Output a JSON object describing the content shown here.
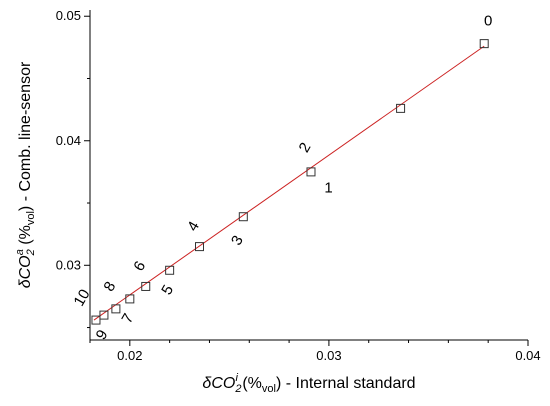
{
  "chart_data": {
    "type": "scatter",
    "x_axis": {
      "title_parts": [
        "δCO",
        "2",
        "i",
        " (%",
        "vol",
        ") - Internal standard"
      ],
      "range": [
        0.018,
        0.04
      ],
      "ticks": [
        0.02,
        0.03,
        0.04
      ],
      "tick_labels": [
        "0.02",
        "0.03",
        "0.04"
      ],
      "minor_ticks": [
        0.018,
        0.022,
        0.024,
        0.026,
        0.028,
        0.032,
        0.034,
        0.036,
        0.038
      ]
    },
    "y_axis": {
      "title_parts": [
        "δCO",
        "2",
        "a",
        " (%",
        "vol",
        ") - Comb. line-sensor"
      ],
      "range": [
        0.024,
        0.0505
      ],
      "ticks": [
        0.03,
        0.04,
        0.05
      ],
      "tick_labels": [
        "0.03",
        "0.04",
        "0.05"
      ],
      "minor_ticks": [
        0.025,
        0.035,
        0.045
      ]
    },
    "series": [
      {
        "marker": "open-square",
        "points": [
          {
            "label": "0",
            "x": 0.0378,
            "y": 0.0478
          },
          {
            "label": "1",
            "x": 0.0336,
            "y": 0.0426
          },
          {
            "label": "2",
            "x": 0.0291,
            "y": 0.0375
          },
          {
            "label": "3",
            "x": 0.0257,
            "y": 0.0339
          },
          {
            "label": "4",
            "x": 0.0235,
            "y": 0.0315
          },
          {
            "label": "5",
            "x": 0.022,
            "y": 0.0296
          },
          {
            "label": "6",
            "x": 0.0208,
            "y": 0.0283
          },
          {
            "label": "7",
            "x": 0.02,
            "y": 0.0273
          },
          {
            "label": "8",
            "x": 0.0193,
            "y": 0.0265
          },
          {
            "label": "9",
            "x": 0.0187,
            "y": 0.026
          },
          {
            "label": "10",
            "x": 0.0183,
            "y": 0.0256
          }
        ]
      }
    ],
    "fit_line": {
      "x": [
        0.0182,
        0.0378
      ],
      "y": [
        0.0256,
        0.0476
      ],
      "color": "#cc2222"
    },
    "grid": false,
    "colors": {
      "marker": "#333333",
      "axis": "#000000",
      "fit": "#cc2222"
    }
  }
}
